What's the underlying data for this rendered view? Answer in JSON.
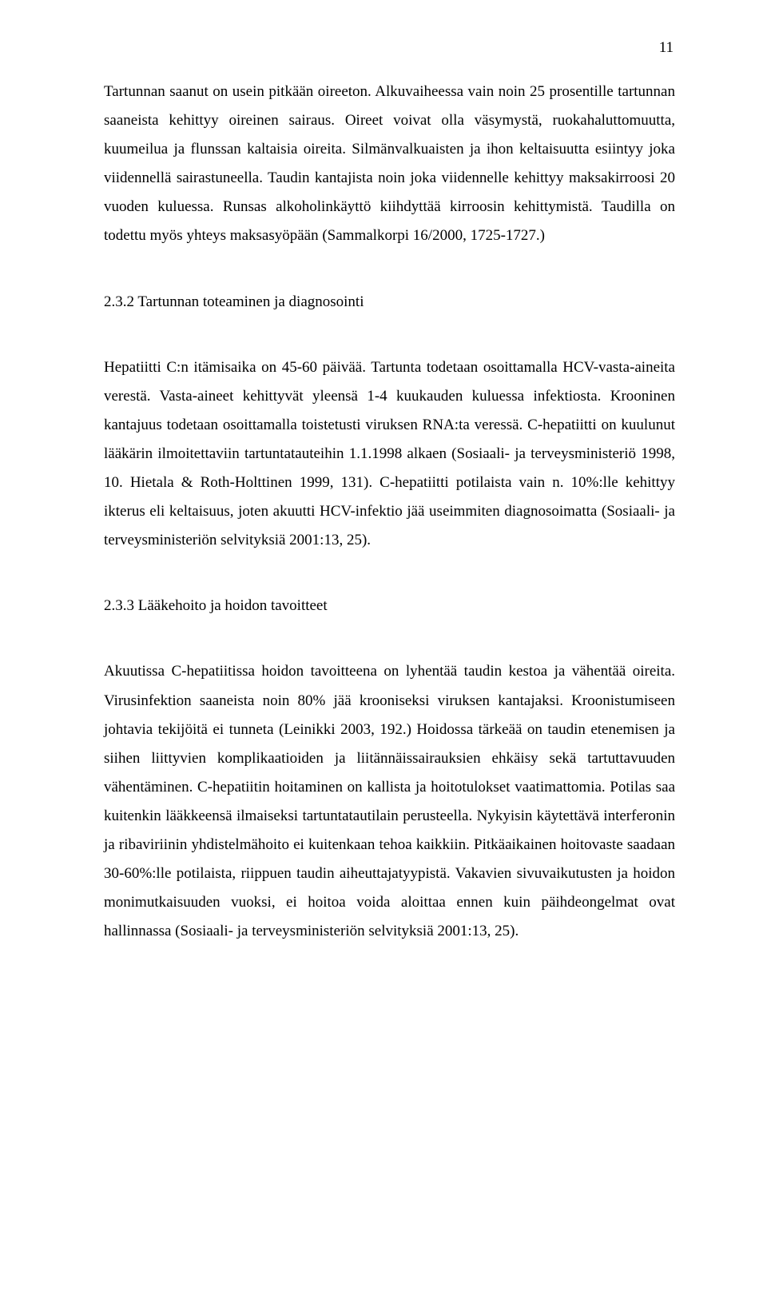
{
  "page": {
    "number": "11"
  },
  "body": {
    "p1": "Tartunnan saanut on usein pitkään oireeton. Alkuvaiheessa vain noin 25 prosentille tartunnan saaneista kehittyy oireinen sairaus. Oireet voivat olla väsymystä, ruokahaluttomuutta, kuumeilua ja flunssan kaltaisia oireita. Silmänvalkuaisten ja ihon keltaisuutta esiintyy joka viidennellä sairastuneella. Taudin kantajista noin joka viidennelle kehittyy maksakirroosi 20 vuoden kuluessa. Runsas alkoholinkäyttö kiihdyttää kirroosin kehittymistä. Taudilla on todettu myös yhteys maksasyöpään (Sammalkorpi 16/2000, 1725-1727.)",
    "h1": "2.3.2 Tartunnan toteaminen ja diagnosointi",
    "p2": "Hepatiitti C:n itämisaika on 45-60 päivää. Tartunta todetaan osoittamalla HCV-vasta-aineita verestä. Vasta-aineet kehittyvät yleensä 1-4 kuukauden kuluessa infektiosta. Krooninen kantajuus todetaan osoittamalla toistetusti viruksen RNA:ta veressä. C-hepatiitti on kuulunut lääkärin ilmoitettaviin tartuntatauteihin 1.1.1998 alkaen (Sosiaali- ja terveysministeriö 1998, 10. Hietala & Roth-Holttinen 1999, 131). C-hepatiitti potilaista vain n. 10%:lle kehittyy ikterus eli keltaisuus, joten akuutti HCV-infektio jää useimmiten diagnosoimatta (Sosiaali- ja terveysministeriön selvityksiä 2001:13, 25).",
    "h2": "2.3.3 Lääkehoito ja hoidon tavoitteet",
    "p3": "Akuutissa C-hepatiitissa hoidon tavoitteena on lyhentää taudin kestoa ja vähentää oireita. Virusinfektion saaneista noin 80% jää krooniseksi viruksen kantajaksi. Kroonistumiseen johtavia tekijöitä ei tunneta (Leinikki 2003, 192.) Hoidossa tärkeää on taudin etenemisen ja siihen liittyvien komplikaatioiden ja liitännäissairauksien ehkäisy sekä tartuttavuuden vähentäminen. C-hepatiitin hoitaminen on kallista ja hoitotulokset vaatimattomia. Potilas saa kuitenkin lääkkeensä ilmaiseksi tartuntatautilain perusteella. Nykyisin käytettävä interferonin ja ribaviriinin yhdistelmähoito ei kuitenkaan tehoa kaikkiin. Pitkäaikainen hoitovaste saadaan 30-60%:lle potilaista, riippuen taudin aiheuttajatyypistä. Vakavien sivuvaikutusten ja hoidon monimutkaisuuden vuoksi, ei hoitoa voida aloittaa ennen kuin päihdeongelmat ovat hallinnassa (Sosiaali- ja terveysministeriön selvityksiä 2001:13, 25)."
  }
}
